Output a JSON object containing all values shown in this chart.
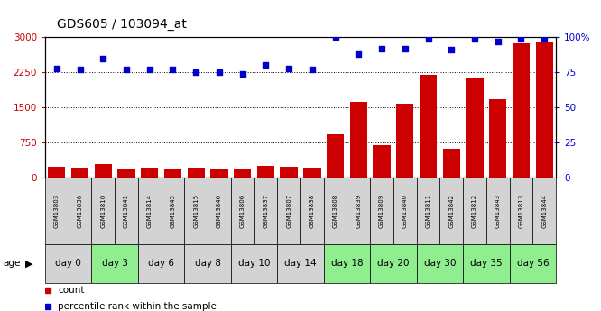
{
  "title": "GDS605 / 103094_at",
  "gsm_labels": [
    "GSM13803",
    "GSM13836",
    "GSM13810",
    "GSM13841",
    "GSM13814",
    "GSM13845",
    "GSM13815",
    "GSM13846",
    "GSM13806",
    "GSM13837",
    "GSM13807",
    "GSM13838",
    "GSM13808",
    "GSM13839",
    "GSM13809",
    "GSM13840",
    "GSM13811",
    "GSM13842",
    "GSM13812",
    "GSM13843",
    "GSM13813",
    "GSM13844"
  ],
  "day_groups": [
    {
      "label": "day 0",
      "indices": [
        0,
        1
      ],
      "color": "#d3d3d3"
    },
    {
      "label": "day 3",
      "indices": [
        2,
        3
      ],
      "color": "#90ee90"
    },
    {
      "label": "day 6",
      "indices": [
        4,
        5
      ],
      "color": "#d3d3d3"
    },
    {
      "label": "day 8",
      "indices": [
        6,
        7
      ],
      "color": "#d3d3d3"
    },
    {
      "label": "day 10",
      "indices": [
        8,
        9
      ],
      "color": "#d3d3d3"
    },
    {
      "label": "day 14",
      "indices": [
        10,
        11
      ],
      "color": "#d3d3d3"
    },
    {
      "label": "day 18",
      "indices": [
        12,
        13
      ],
      "color": "#90ee90"
    },
    {
      "label": "day 20",
      "indices": [
        14,
        15
      ],
      "color": "#90ee90"
    },
    {
      "label": "day 30",
      "indices": [
        16,
        17
      ],
      "color": "#90ee90"
    },
    {
      "label": "day 35",
      "indices": [
        18,
        19
      ],
      "color": "#90ee90"
    },
    {
      "label": "day 56",
      "indices": [
        20,
        21
      ],
      "color": "#90ee90"
    }
  ],
  "count_values": [
    220,
    200,
    290,
    190,
    210,
    175,
    215,
    190,
    170,
    250,
    225,
    205,
    920,
    1620,
    680,
    1570,
    2200,
    620,
    2120,
    1680,
    2880,
    2900
  ],
  "percentile_values": [
    78,
    77,
    85,
    77,
    77,
    77,
    75,
    75,
    74,
    80,
    78,
    77,
    100,
    88,
    92,
    92,
    99,
    91,
    99,
    97,
    99,
    99
  ],
  "left_ylim": [
    0,
    3000
  ],
  "left_yticks": [
    0,
    750,
    1500,
    2250,
    3000
  ],
  "right_ylim": [
    0,
    100
  ],
  "right_yticks": [
    0,
    25,
    50,
    75,
    100
  ],
  "right_yticklabels": [
    "0",
    "25",
    "50",
    "75",
    "100%"
  ],
  "bar_color": "#cc0000",
  "dot_color": "#0000cc",
  "bg_color": "#ffffff",
  "label_color_left": "#cc0000",
  "label_color_right": "#0000cc",
  "gsm_bg_color": "#d3d3d3",
  "legend_items": [
    {
      "color": "#cc0000",
      "label": "count"
    },
    {
      "color": "#0000cc",
      "label": "percentile rank within the sample"
    }
  ]
}
